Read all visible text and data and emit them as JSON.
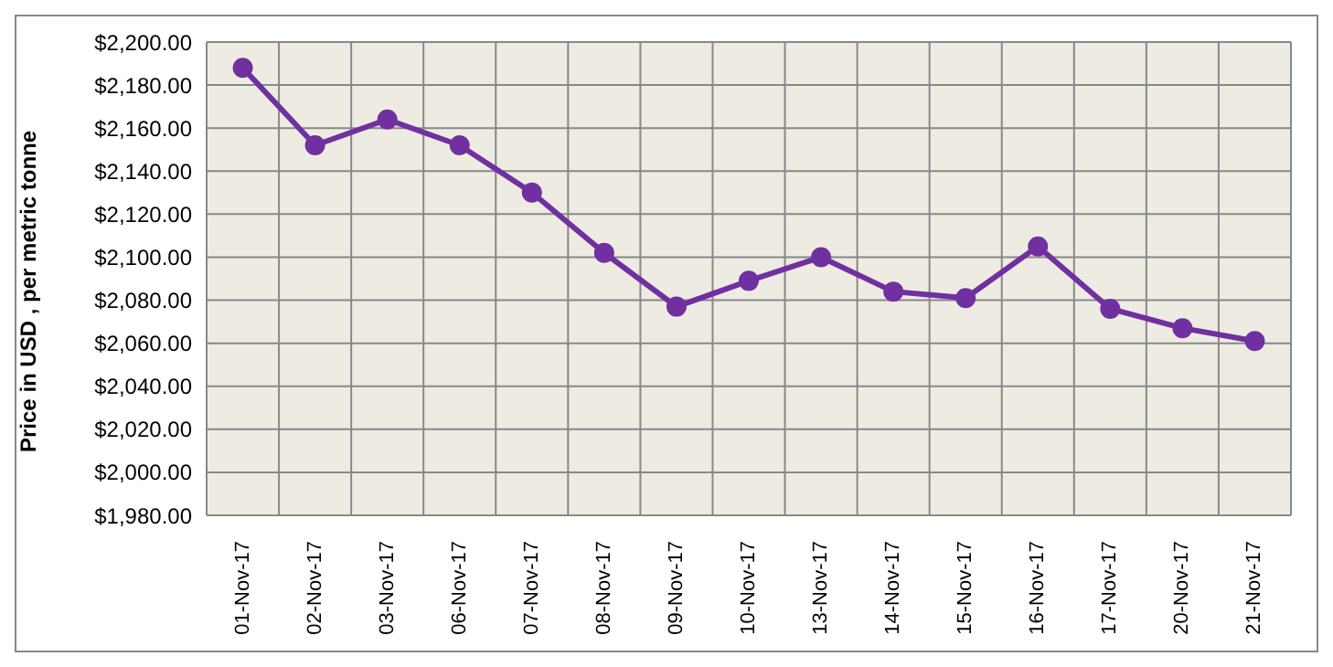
{
  "chart_data": {
    "type": "line",
    "ylabel": "Price in USD , per metric tonne",
    "categories": [
      "01-Nov-17",
      "02-Nov-17",
      "03-Nov-17",
      "06-Nov-17",
      "07-Nov-17",
      "08-Nov-17",
      "09-Nov-17",
      "10-Nov-17",
      "13-Nov-17",
      "14-Nov-17",
      "15-Nov-17",
      "16-Nov-17",
      "17-Nov-17",
      "20-Nov-17",
      "21-Nov-17"
    ],
    "series": [
      {
        "color": "#7030a0",
        "values": [
          2188,
          2152,
          2164,
          2152,
          2130,
          2102,
          2077,
          2089,
          2100,
          2084,
          2081,
          2105,
          2076,
          2067,
          2061
        ]
      }
    ],
    "ylim": [
      1980,
      2200
    ],
    "yticks": [
      {
        "value": 1980,
        "label": "$1,980.00"
      },
      {
        "value": 2000,
        "label": "$2,000.00"
      },
      {
        "value": 2020,
        "label": "$2,020.00"
      },
      {
        "value": 2040,
        "label": "$2,040.00"
      },
      {
        "value": 2060,
        "label": "$2,060.00"
      },
      {
        "value": 2080,
        "label": "$2,080.00"
      },
      {
        "value": 2100,
        "label": "$2,100.00"
      },
      {
        "value": 2120,
        "label": "$2,120.00"
      },
      {
        "value": 2140,
        "label": "$2,140.00"
      },
      {
        "value": 2160,
        "label": "$2,160.00"
      },
      {
        "value": 2180,
        "label": "$2,180.00"
      },
      {
        "value": 2200,
        "label": "$2,200.00"
      }
    ],
    "grid": true,
    "marker": "circle",
    "line_style": "solid",
    "legend": false
  }
}
